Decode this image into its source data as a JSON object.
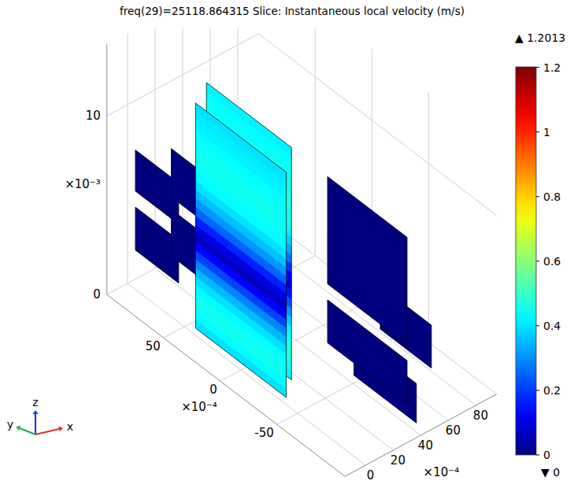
{
  "chart_data": {
    "type": "slice3d",
    "title": "freq(29)=25118.864315   Slice: Instantaneous local velocity (m/s)",
    "xlim": [
      -15,
      95
    ],
    "ylim": [
      -110,
      100
    ],
    "zlim": [
      0,
      14
    ],
    "xticks": [
      0,
      20,
      40,
      60,
      80
    ],
    "yticks": [
      -50,
      0,
      50
    ],
    "zticks": [
      0,
      10
    ],
    "x_multiplier": "×10⁻⁴",
    "y_multiplier": "×10⁻⁴",
    "z_multiplier": "×10⁻³",
    "triad": {
      "x": "x",
      "y": "y",
      "z": "z"
    },
    "grid": true,
    "colorbar": {
      "min": {
        "value": 0,
        "label": "▼ 0"
      },
      "max": {
        "value": 1.2013,
        "label": "▲ 1.2013"
      },
      "ticks": [
        0,
        0.2,
        0.4,
        0.6,
        0.8,
        1,
        1.2
      ]
    },
    "slices": [
      {
        "x": 0,
        "y_range": [
          -40,
          40
        ],
        "z_range": [
          0.4,
          13
        ],
        "values": [
          0.4,
          0.43,
          0.45,
          0.45,
          0.43,
          0.4,
          0.35,
          0.29,
          0.21,
          0.13,
          0.07,
          0.1,
          0.17,
          0.25,
          0.31,
          0.36,
          0.4,
          0.43,
          0.44,
          0.45,
          0.45,
          0.44,
          0.43,
          0.42,
          0.41,
          0.4
        ]
      },
      {
        "x": 12,
        "y_range": [
          -30,
          45
        ],
        "z_range": [
          0.4,
          13.4
        ],
        "values": [
          0.42,
          0.45,
          0.47,
          0.47,
          0.45,
          0.42,
          0.37,
          0.31,
          0.23,
          0.15,
          0.09,
          0.12,
          0.19,
          0.27,
          0.33,
          0.38,
          0.42,
          0.45,
          0.46,
          0.47,
          0.47,
          0.46,
          0.45,
          0.44,
          0.43,
          0.42
        ]
      },
      {
        "x": 0,
        "y_range": [
          55,
          93
        ],
        "z_range": [
          5.5,
          7.8
        ],
        "values": [
          0
        ]
      },
      {
        "x": 0,
        "y_range": [
          55,
          93
        ],
        "z_range": [
          2.2,
          4.6
        ],
        "values": [
          0
        ]
      },
      {
        "x": 12,
        "y_range": [
          48,
          76
        ],
        "z_range": [
          5.5,
          8.2
        ],
        "values": [
          0
        ]
      },
      {
        "x": 12,
        "y_range": [
          48,
          76
        ],
        "z_range": [
          2.2,
          4.8
        ],
        "values": [
          0
        ]
      },
      {
        "x": 30,
        "y_range": [
          -110,
          -40
        ],
        "z_range": [
          5.5,
          11.5
        ],
        "values": [
          0
        ]
      },
      {
        "x": 30,
        "y_range": [
          -110,
          -40
        ],
        "z_range": [
          2.2,
          4.6
        ],
        "values": [
          0
        ]
      },
      {
        "x": 45,
        "y_range": [
          -100,
          -45
        ],
        "z_range": [
          0,
          2.2
        ],
        "values": [
          0
        ]
      },
      {
        "x": 60,
        "y_range": [
          -95,
          -50
        ],
        "z_range": [
          2.2,
          4.6
        ],
        "values": [
          0
        ]
      }
    ]
  }
}
